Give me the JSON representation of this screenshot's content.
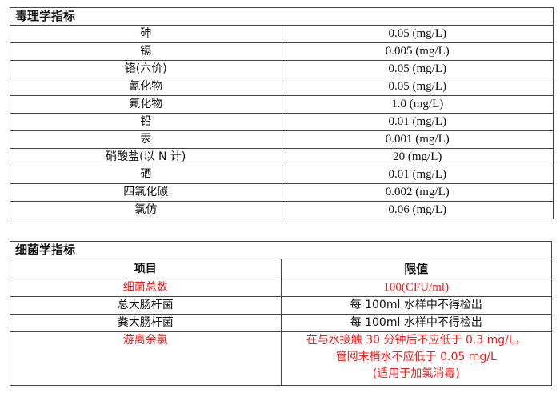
{
  "toxicology": {
    "title": "毒理学指标",
    "rows": [
      {
        "item": "砷",
        "limit": "0.05 (mg/L)"
      },
      {
        "item": "镉",
        "limit": "0.005 (mg/L)"
      },
      {
        "item": "铬(六价)",
        "limit": "0.05 (mg/L)"
      },
      {
        "item": "氰化物",
        "limit": "0.05 (mg/L)"
      },
      {
        "item": "氟化物",
        "limit": "1.0 (mg/L)"
      },
      {
        "item": "铅",
        "limit": "0.01 (mg/L)"
      },
      {
        "item": "汞",
        "limit": "0.001 (mg/L)"
      },
      {
        "item": "硝酸盐(以 N 计)",
        "limit": "20 (mg/L)"
      },
      {
        "item": "硒",
        "limit": "0.01 (mg/L)"
      },
      {
        "item": "四氯化碳",
        "limit": "0.002 (mg/L)"
      },
      {
        "item": "氯仿",
        "limit": "0.06 (mg/L)"
      }
    ]
  },
  "bacteriology": {
    "title": "细菌学指标",
    "col_item": "项目",
    "col_limit": "限值",
    "rows": [
      {
        "item": "细菌总数",
        "limit": "100(CFU/ml)",
        "highlight": true
      },
      {
        "item": "总大肠杆菌",
        "limit": "每 100ml 水样中不得检出"
      },
      {
        "item": "粪大肠杆菌",
        "limit": "每 100ml 水样中不得检出"
      },
      {
        "item": "游离余氯",
        "limit_lines": [
          "在与水接触 30 分钟后不应低于 0.3 mg/L，",
          "管网末梢水不应低于 0.05 mg/L",
          "(适用于加氯消毒)"
        ],
        "highlight": true
      }
    ]
  },
  "colors": {
    "highlight": "#ee1c1c",
    "border": "#444444"
  }
}
